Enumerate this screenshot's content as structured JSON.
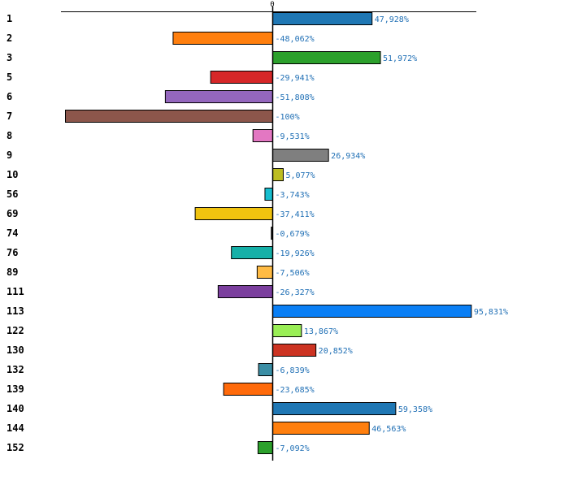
{
  "chart_data": {
    "type": "bar",
    "orientation": "horizontal",
    "title": "",
    "xlabel": "",
    "ylabel": "",
    "zero_tick_label": "0",
    "xlim": [
      -104,
      100
    ],
    "categories": [
      "1",
      "2",
      "3",
      "5",
      "6",
      "7",
      "8",
      "9",
      "10",
      "56",
      "69",
      "74",
      "76",
      "89",
      "111",
      "113",
      "122",
      "130",
      "132",
      "139",
      "140",
      "144",
      "152"
    ],
    "values": [
      47.928,
      -48.062,
      51.972,
      -29.941,
      -51.808,
      -100,
      -9.531,
      26.934,
      5.077,
      -3.743,
      -37.411,
      -0.679,
      -19.926,
      -7.506,
      -26.327,
      95.831,
      13.867,
      20.852,
      -6.839,
      -23.685,
      59.358,
      46.563,
      -7.092
    ],
    "value_labels": [
      "47,928%",
      "-48,062%",
      "51,972%",
      "-29,941%",
      "-51,808%",
      "-100%",
      "-9,531%",
      "26,934%",
      "5,077%",
      "-3,743%",
      "-37,411%",
      "-0,679%",
      "-19,926%",
      "-7,506%",
      "-26,327%",
      "95,831%",
      "13,867%",
      "20,852%",
      "-6,839%",
      "-23,685%",
      "59,358%",
      "46,563%",
      "-7,092%"
    ],
    "colors": [
      "#1f77b4",
      "#ff7f0e",
      "#2ca02c",
      "#d62728",
      "#9467bd",
      "#8c564b",
      "#e377c2",
      "#7f7f7f",
      "#bcbd22",
      "#17becf",
      "#f0c30f",
      "#111111",
      "#16b0a8",
      "#ffbb44",
      "#7b3f9e",
      "#0a7ff5",
      "#99ee55",
      "#cc3322",
      "#3b8ea5",
      "#ff6a0a",
      "#1f77b4",
      "#ff7f0e",
      "#2ca02c"
    ],
    "value_label_color": "#1f6fb5"
  }
}
